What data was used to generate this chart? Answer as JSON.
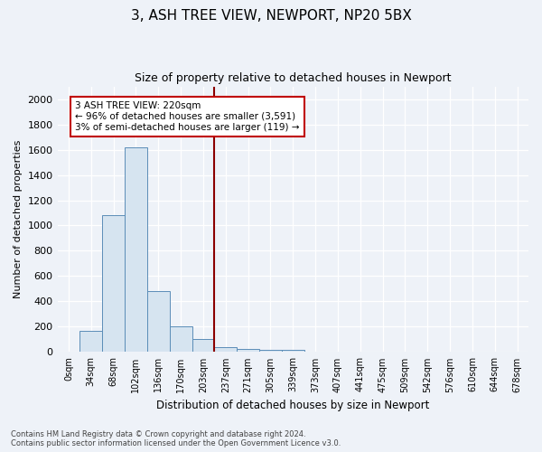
{
  "title1": "3, ASH TREE VIEW, NEWPORT, NP20 5BX",
  "title2": "Size of property relative to detached houses in Newport",
  "xlabel": "Distribution of detached houses by size in Newport",
  "ylabel": "Number of detached properties",
  "footer1": "Contains HM Land Registry data © Crown copyright and database right 2024.",
  "footer2": "Contains public sector information licensed under the Open Government Licence v3.0.",
  "annotation_line1": "3 ASH TREE VIEW: 220sqm",
  "annotation_line2": "← 96% of detached houses are smaller (3,591)",
  "annotation_line3": "3% of semi-detached houses are larger (119) →",
  "bar_color": "#d6e4f0",
  "bar_edge_color": "#5b8db8",
  "vline_color": "#8b0000",
  "categories": [
    "0sqm",
    "34sqm",
    "68sqm",
    "102sqm",
    "136sqm",
    "170sqm",
    "203sqm",
    "237sqm",
    "271sqm",
    "305sqm",
    "339sqm",
    "373sqm",
    "407sqm",
    "441sqm",
    "475sqm",
    "509sqm",
    "542sqm",
    "576sqm",
    "610sqm",
    "644sqm",
    "678sqm"
  ],
  "values": [
    0,
    165,
    1080,
    1620,
    480,
    200,
    100,
    40,
    25,
    18,
    18,
    0,
    0,
    0,
    0,
    0,
    0,
    0,
    0,
    0,
    0
  ],
  "ylim": [
    0,
    2100
  ],
  "yticks": [
    0,
    200,
    400,
    600,
    800,
    1000,
    1200,
    1400,
    1600,
    1800,
    2000
  ],
  "background_color": "#eef2f8",
  "grid_color": "#d0d8e8",
  "figsize": [
    6.0,
    5.0
  ],
  "dpi": 100,
  "vline_x_index": 6.5
}
